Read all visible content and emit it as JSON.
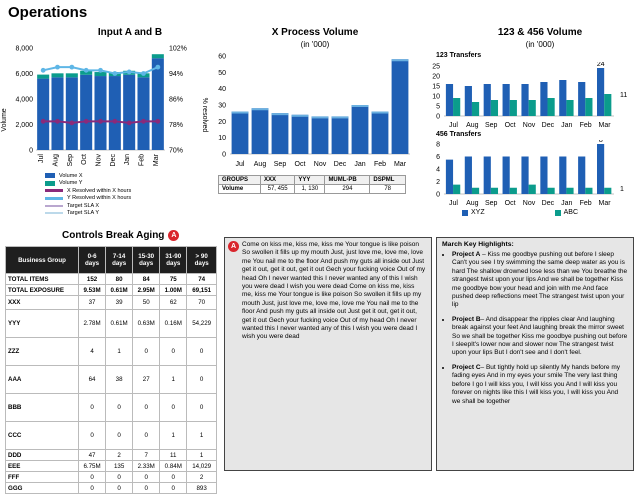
{
  "page_title": "Operations",
  "colors": {
    "blue": "#1f5fb4",
    "teal": "#0b9c8c",
    "light_blue": "#5eb6e6",
    "navy": "#1a3a8c",
    "purple": "#8a2a7a",
    "red_badge": "#d9262d"
  },
  "chart_a": {
    "title": "Input A and B",
    "y_left_label": "Volume",
    "y_right_label": "% resolved",
    "y_left_ticks": [
      "8,000",
      "6,000",
      "4,000",
      "2,000",
      "0"
    ],
    "y_right_ticks": [
      "102%",
      "94%",
      "86%",
      "78%",
      "70%"
    ],
    "categories": [
      "Jul",
      "Aug",
      "Sep",
      "Oct",
      "Nov",
      "Dec",
      "Jan",
      "Feb",
      "Mar"
    ],
    "legend": [
      "Volume X",
      "Volume Y",
      "X Resolved within X hours",
      "Y Resolved within X hours",
      "Target SLA X",
      "Target SLA Y"
    ]
  },
  "chart_b": {
    "title": "X Process Volume",
    "subtitle": "(in '000)",
    "y_ticks": [
      "60",
      "50",
      "40",
      "30",
      "20",
      "10",
      "0"
    ],
    "categories": [
      "Jul",
      "Aug",
      "Sep",
      "Oct",
      "Nov",
      "Dec",
      "Jan",
      "Feb",
      "Mar"
    ],
    "table": {
      "headers": [
        "GROUPS",
        "XXX",
        "YYY",
        "MUML-PB",
        "DSPML"
      ],
      "row": [
        "Volume",
        "57, 455",
        "1, 130",
        "294",
        "78"
      ]
    }
  },
  "chart_c": {
    "title": "123 & 456 Volume",
    "subtitle": "(in '000)",
    "top_label": "123 Transfers",
    "bottom_label": "456 Transfers",
    "top_ticks": [
      "25",
      "20",
      "15",
      "10",
      "5",
      "0"
    ],
    "bottom_ticks": [
      "8",
      "6",
      "4",
      "2",
      "0"
    ],
    "categories": [
      "Jul",
      "Aug",
      "Sep",
      "Oct",
      "Nov",
      "Dec",
      "Jan",
      "Feb",
      "Mar"
    ],
    "top_labels": [
      "24",
      "11"
    ],
    "bottom_labels": [
      "8",
      "1"
    ],
    "legend": [
      "XYZ",
      "ABC"
    ]
  },
  "chart_data": [
    {
      "type": "bar",
      "title": "Input A and B",
      "ylabel": "Volume",
      "categories": [
        "Jul",
        "Aug",
        "Sep",
        "Oct",
        "Nov",
        "Dec",
        "Jan",
        "Feb",
        "Mar"
      ],
      "ylim": [
        0,
        8000
      ],
      "series": [
        {
          "name": "Volume X",
          "values": [
            5600,
            5700,
            5700,
            5900,
            5800,
            5800,
            5900,
            5700,
            7200
          ]
        },
        {
          "name": "Volume Y",
          "values": [
            300,
            300,
            300,
            300,
            300,
            300,
            300,
            300,
            300
          ]
        }
      ],
      "y2lim": [
        70,
        102
      ],
      "lines": [
        {
          "name": "X Resolved within X hours",
          "values": [
            79,
            79,
            78.5,
            79,
            79,
            79,
            78.5,
            79,
            79
          ]
        },
        {
          "name": "Y Resolved within X hours",
          "values": [
            95,
            96,
            96,
            95,
            95,
            94,
            94.5,
            94,
            96
          ]
        }
      ]
    },
    {
      "type": "bar",
      "title": "X Process Volume",
      "categories": [
        "Jul",
        "Aug",
        "Sep",
        "Oct",
        "Nov",
        "Dec",
        "Jan",
        "Feb",
        "Mar"
      ],
      "ylim": [
        0,
        60
      ],
      "values": [
        26,
        28,
        25,
        24,
        23,
        23,
        30,
        26,
        58
      ]
    },
    {
      "type": "bar",
      "title": "123 Transfers",
      "categories": [
        "Jul",
        "Aug",
        "Sep",
        "Oct",
        "Nov",
        "Dec",
        "Jan",
        "Feb",
        "Mar"
      ],
      "ylim": [
        0,
        25
      ],
      "series": [
        {
          "name": "XYZ",
          "values": [
            16,
            15,
            16,
            16,
            16,
            17,
            18,
            17,
            24
          ]
        },
        {
          "name": "ABC",
          "values": [
            9,
            7,
            8,
            8,
            8,
            9,
            8,
            9,
            11
          ]
        }
      ]
    },
    {
      "type": "bar",
      "title": "456 Transfers",
      "categories": [
        "Jul",
        "Aug",
        "Sep",
        "Oct",
        "Nov",
        "Dec",
        "Jan",
        "Feb",
        "Mar"
      ],
      "ylim": [
        0,
        8
      ],
      "series": [
        {
          "name": "XYZ",
          "values": [
            5.5,
            6,
            6,
            6,
            6,
            6,
            6,
            6,
            8
          ]
        },
        {
          "name": "ABC",
          "values": [
            1.5,
            1,
            1,
            1,
            1.5,
            1,
            1,
            1,
            1
          ]
        }
      ]
    }
  ],
  "aging": {
    "title": "Controls Break Aging",
    "badge": "A",
    "group_header": "Business Group",
    "bucket_headers": [
      [
        "0-6",
        "days"
      ],
      [
        "7-14",
        "days"
      ],
      [
        "15-30",
        "days"
      ],
      [
        "31-90",
        "days"
      ],
      [
        "> 90",
        "days"
      ]
    ],
    "rows": [
      {
        "label": "TOTAL ITEMS",
        "vals": [
          "152",
          "80",
          "84",
          "75",
          "74"
        ],
        "total": true
      },
      {
        "label": "TOTAL EXPOSURE",
        "vals": [
          "9.53M",
          "0.61M",
          "2.95M",
          "1.00M",
          "69,151"
        ],
        "total": true
      },
      {
        "label": "XXX",
        "vals": [
          "37",
          "39",
          "50",
          "62",
          "70"
        ]
      },
      {
        "label": "YYY",
        "vals": [
          "2.78M",
          "0.61M",
          "0.63M",
          "0.16M",
          "54,229"
        ]
      },
      {
        "label": "ZZZ",
        "vals": [
          "4",
          "1",
          "0",
          "0",
          "0"
        ]
      },
      {
        "label": "AAA",
        "vals": [
          "64",
          "38",
          "27",
          "1",
          "0"
        ]
      },
      {
        "label": "BBB",
        "vals": [
          "0",
          "0",
          "0",
          "0",
          "0"
        ]
      },
      {
        "label": "CCC",
        "vals": [
          "0",
          "0",
          "0",
          "1",
          "1"
        ]
      },
      {
        "label": "DDD",
        "vals": [
          "47",
          "2",
          "7",
          "11",
          "1"
        ]
      },
      {
        "label": "EEE",
        "vals": [
          "6.75M",
          "135",
          "2.33M",
          "0.84M",
          "14,029"
        ]
      },
      {
        "label": "FFF",
        "vals": [
          "0",
          "0",
          "0",
          "0",
          "2"
        ]
      },
      {
        "label": "GGG",
        "vals": [
          "0",
          "0",
          "0",
          "0",
          "893"
        ]
      }
    ]
  },
  "notes": {
    "badge": "A",
    "text": "Come on kiss me, kiss me, kiss me Your tongue is like poison So swollen it fills up my mouth Just, just love me, love me, love me You nail me to the floor And push my guts all inside out Just get it out, get it out, get it out Gech your fucking voice Out of my head Oh I never wanted this I never wanted any of this I wish you were dead I wish you were dead Come on kiss me, kiss me, kiss me Your tongue is like poison So swollen it fills up my mouth Just, just love me, love me, love me You nail me to the floor And push my guts all inside out Just get it out, get it out, get it out Gech your fucking voice Out of my head Oh I never wanted this I never wanted any of this I wish you were dead I wish you were dead"
  },
  "highlights": {
    "title": "March Key Highlights:",
    "items": [
      {
        "name": "Project A",
        "text": " – Kiss me goodbye pushing out before I sleep Can't you see I try swimming the same deep water as you is hard The shallow drowned lose less than we You breathe the strangest twist upon your lips And we shall be together Kiss me goodbye bow your head and join with me And face pushed deep reflections meet The strangest twist upon your lip"
      },
      {
        "name": "Project B",
        "text": "– And disappear the ripples clear And laughing break against your feet And laughing break the mirror sweet So we shall be together Kiss me goodbye pushing out before I sleepIt's lower now and slower now The strangest twist upon your lips But I don't see and I don't feel."
      },
      {
        "name": "Project C",
        "text": "– But tightly hold up silently My hands before my fading eyes And in my eyes your smile The very last thing before I go I will kiss you, I will kiss you And I will kiss you forever on nights like this I will kiss you, I will kiss you And we shall be together"
      }
    ]
  }
}
